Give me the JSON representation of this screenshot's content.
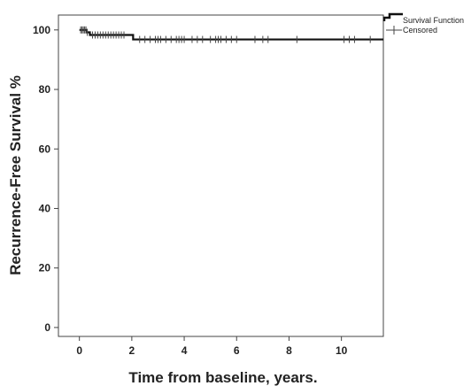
{
  "chart_data": {
    "type": "line",
    "xlabel": "Time from baseline, years.",
    "ylabel": "Recurrence-Free Survival %",
    "xlim": [
      -0.8,
      11.6
    ],
    "ylim": [
      -3,
      105
    ],
    "xticks": [
      0,
      2,
      4,
      6,
      8,
      10
    ],
    "yticks": [
      0,
      20,
      40,
      60,
      80,
      100
    ],
    "grid": false,
    "legend_position": "top-right",
    "legend": [
      {
        "name": "Survival Function",
        "style": "step-line"
      },
      {
        "name": "Censored",
        "style": "cross-marker"
      }
    ],
    "series": [
      {
        "name": "Survival Function",
        "color": "#111111",
        "steps": [
          {
            "x": 0.0,
            "y": 100
          },
          {
            "x": 0.28,
            "y": 99.2
          },
          {
            "x": 0.4,
            "y": 98.3
          },
          {
            "x": 2.05,
            "y": 96.8
          },
          {
            "x": 11.6,
            "y": 96.8
          }
        ],
        "censored_x": [
          0.05,
          0.1,
          0.15,
          0.2,
          0.25,
          0.3,
          0.5,
          0.6,
          0.7,
          0.8,
          0.9,
          1.0,
          1.1,
          1.2,
          1.3,
          1.4,
          1.5,
          1.6,
          1.7,
          2.3,
          2.5,
          2.7,
          2.9,
          3.0,
          3.1,
          3.3,
          3.5,
          3.7,
          3.8,
          3.9,
          4.0,
          4.3,
          4.5,
          4.7,
          5.0,
          5.2,
          5.3,
          5.4,
          5.6,
          5.8,
          6.0,
          6.7,
          7.0,
          7.2,
          8.3,
          10.1,
          10.3,
          10.5,
          11.1
        ]
      }
    ]
  }
}
